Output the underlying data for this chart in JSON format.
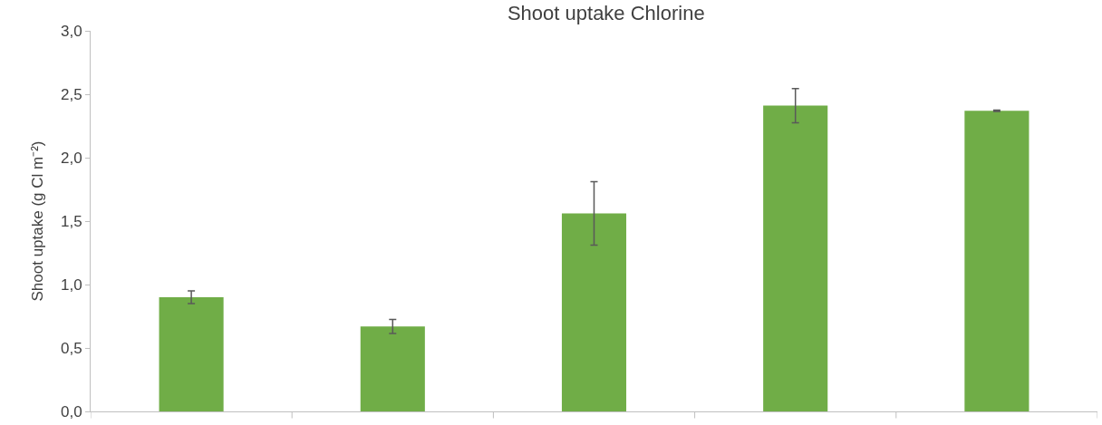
{
  "chart_data": {
    "type": "bar",
    "title": "Shoot uptake Chlorine",
    "ylabel": "Shoot uptake (g Cl m⁻²)",
    "categories": [
      null,
      null,
      null,
      null,
      null
    ],
    "values": [
      0.9,
      0.67,
      1.56,
      2.41,
      2.37
    ],
    "errors": [
      0.05,
      0.055,
      0.25,
      0.135,
      0.005
    ],
    "color": "#70ad47",
    "ylim": [
      0,
      3.0
    ],
    "yticks": [
      {
        "value": 0,
        "label": "0,0"
      },
      {
        "value": 0.5,
        "label": "0,5"
      },
      {
        "value": 1.0,
        "label": "1,0"
      },
      {
        "value": 1.5,
        "label": "1,5"
      },
      {
        "value": 2.0,
        "label": "2,0"
      },
      {
        "value": 2.5,
        "label": "2,5"
      },
      {
        "value": 3.0,
        "label": "3,0"
      }
    ]
  }
}
